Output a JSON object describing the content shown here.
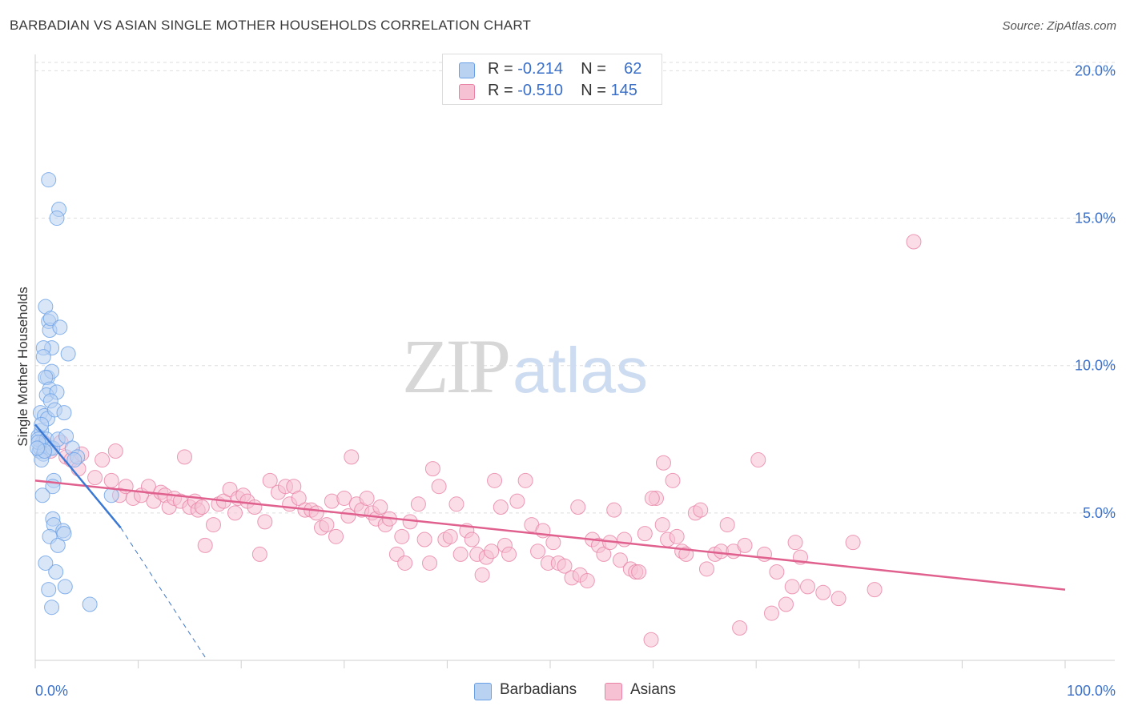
{
  "title": "BARBADIAN VS ASIAN SINGLE MOTHER HOUSEHOLDS CORRELATION CHART",
  "source": "Source: ZipAtlas.com",
  "watermark": {
    "zip": "ZIP",
    "atlas": "atlas"
  },
  "legend": {
    "rows": [
      {
        "r_label": "R =",
        "r_value": "-0.214",
        "n_label": "N =",
        "n_value": "62"
      },
      {
        "r_label": "R =",
        "r_value": "-0.510",
        "n_label": "N =",
        "n_value": "145"
      }
    ]
  },
  "chart_data": {
    "type": "scatter",
    "xlabel": "",
    "ylabel": "Single Mother Households",
    "xlim": [
      0,
      100
    ],
    "ylim": [
      0,
      20.5
    ],
    "x_tick_labels": [
      "0.0%",
      "100.0%"
    ],
    "y_ticks": [
      5,
      10,
      15,
      20
    ],
    "y_tick_labels": [
      "5.0%",
      "10.0%",
      "15.0%",
      "20.0%"
    ],
    "grid": "horizontal dashed",
    "legend_position": "top-center",
    "series": [
      {
        "name": "Barbadians",
        "color": "#6aa0e6",
        "fill": "#b9d2f2",
        "trend": {
          "x0": 0,
          "y0": 8.0,
          "x1": 8.3,
          "y1": 4.5,
          "dash_to_x": 16.7,
          "dash_to_y": 0.0
        },
        "points": [
          [
            0.3,
            7.6
          ],
          [
            0.5,
            8.4
          ],
          [
            0.6,
            7.8
          ],
          [
            0.7,
            7.4
          ],
          [
            0.4,
            7.1
          ],
          [
            0.8,
            7.3
          ],
          [
            0.9,
            8.3
          ],
          [
            1.2,
            8.2
          ],
          [
            0.5,
            7.2
          ],
          [
            0.3,
            7.5
          ],
          [
            1.0,
            7.3
          ],
          [
            0.6,
            8.0
          ],
          [
            1.5,
            7.2
          ],
          [
            1.1,
            7.5
          ],
          [
            0.8,
            7.0
          ],
          [
            1.7,
            7.2
          ],
          [
            2.2,
            7.5
          ],
          [
            1.3,
            16.3
          ],
          [
            2.3,
            15.3
          ],
          [
            2.1,
            15.0
          ],
          [
            1.0,
            12.0
          ],
          [
            1.3,
            11.5
          ],
          [
            1.4,
            11.2
          ],
          [
            1.5,
            11.6
          ],
          [
            2.4,
            11.3
          ],
          [
            1.6,
            10.6
          ],
          [
            0.8,
            10.6
          ],
          [
            0.8,
            10.3
          ],
          [
            3.2,
            10.4
          ],
          [
            1.2,
            9.6
          ],
          [
            1.6,
            9.8
          ],
          [
            1.0,
            9.6
          ],
          [
            1.4,
            9.2
          ],
          [
            1.1,
            9.0
          ],
          [
            2.1,
            9.1
          ],
          [
            1.5,
            8.8
          ],
          [
            1.9,
            8.5
          ],
          [
            2.8,
            8.4
          ],
          [
            3.0,
            7.6
          ],
          [
            3.6,
            7.2
          ],
          [
            4.1,
            6.9
          ],
          [
            3.8,
            6.8
          ],
          [
            0.6,
            6.8
          ],
          [
            1.8,
            6.1
          ],
          [
            1.7,
            5.9
          ],
          [
            0.7,
            5.6
          ],
          [
            7.4,
            5.6
          ],
          [
            1.7,
            4.8
          ],
          [
            1.8,
            4.6
          ],
          [
            2.7,
            4.4
          ],
          [
            2.8,
            4.3
          ],
          [
            1.4,
            4.2
          ],
          [
            2.2,
            3.9
          ],
          [
            2.0,
            3.0
          ],
          [
            1.0,
            3.3
          ],
          [
            1.3,
            2.4
          ],
          [
            2.9,
            2.5
          ],
          [
            1.6,
            1.8
          ],
          [
            5.3,
            1.9
          ],
          [
            0.3,
            7.4
          ],
          [
            0.9,
            7.1
          ],
          [
            0.2,
            7.2
          ]
        ]
      },
      {
        "name": "Asians",
        "color": "#e882a6",
        "fill": "#f5c1d3",
        "trend": {
          "x0": 0,
          "y0": 6.1,
          "x1": 100,
          "y1": 2.4
        },
        "points": [
          [
            0.8,
            7.4
          ],
          [
            1.5,
            7.1
          ],
          [
            2.5,
            7.4
          ],
          [
            3.0,
            6.9
          ],
          [
            3.5,
            6.8
          ],
          [
            4.2,
            6.5
          ],
          [
            4.5,
            7.0
          ],
          [
            5.8,
            6.2
          ],
          [
            6.5,
            6.8
          ],
          [
            7.4,
            6.1
          ],
          [
            7.8,
            7.1
          ],
          [
            8.2,
            5.6
          ],
          [
            8.8,
            5.9
          ],
          [
            9.5,
            5.5
          ],
          [
            10.3,
            5.6
          ],
          [
            11.0,
            5.9
          ],
          [
            11.5,
            5.4
          ],
          [
            12.2,
            5.7
          ],
          [
            12.6,
            5.6
          ],
          [
            13.0,
            5.2
          ],
          [
            13.5,
            5.5
          ],
          [
            14.1,
            5.4
          ],
          [
            14.5,
            6.9
          ],
          [
            15.0,
            5.2
          ],
          [
            15.5,
            5.4
          ],
          [
            15.8,
            5.1
          ],
          [
            16.2,
            5.2
          ],
          [
            16.5,
            3.9
          ],
          [
            17.3,
            4.6
          ],
          [
            17.8,
            5.3
          ],
          [
            18.3,
            5.4
          ],
          [
            18.9,
            5.8
          ],
          [
            19.4,
            5.0
          ],
          [
            19.7,
            5.5
          ],
          [
            20.2,
            5.6
          ],
          [
            20.6,
            5.4
          ],
          [
            21.3,
            5.2
          ],
          [
            21.8,
            3.6
          ],
          [
            22.3,
            4.7
          ],
          [
            22.8,
            6.1
          ],
          [
            23.6,
            5.7
          ],
          [
            24.3,
            5.9
          ],
          [
            24.7,
            5.3
          ],
          [
            25.1,
            5.9
          ],
          [
            25.6,
            5.5
          ],
          [
            26.2,
            5.1
          ],
          [
            26.8,
            5.1
          ],
          [
            27.3,
            5.0
          ],
          [
            27.8,
            4.5
          ],
          [
            28.3,
            4.6
          ],
          [
            28.8,
            5.4
          ],
          [
            29.2,
            4.2
          ],
          [
            30.0,
            5.5
          ],
          [
            30.4,
            4.9
          ],
          [
            30.7,
            6.9
          ],
          [
            31.2,
            5.3
          ],
          [
            31.7,
            5.1
          ],
          [
            32.2,
            5.5
          ],
          [
            32.7,
            5.0
          ],
          [
            33.1,
            4.8
          ],
          [
            33.5,
            5.2
          ],
          [
            34.0,
            4.6
          ],
          [
            34.4,
            4.8
          ],
          [
            35.1,
            3.6
          ],
          [
            35.6,
            4.2
          ],
          [
            35.9,
            3.3
          ],
          [
            36.4,
            4.7
          ],
          [
            37.2,
            5.3
          ],
          [
            37.8,
            4.1
          ],
          [
            38.3,
            3.3
          ],
          [
            38.6,
            6.5
          ],
          [
            39.2,
            5.9
          ],
          [
            39.8,
            4.1
          ],
          [
            40.3,
            4.2
          ],
          [
            40.9,
            5.3
          ],
          [
            41.3,
            3.6
          ],
          [
            41.9,
            4.4
          ],
          [
            42.4,
            4.1
          ],
          [
            42.9,
            3.6
          ],
          [
            43.4,
            2.9
          ],
          [
            43.8,
            3.5
          ],
          [
            44.3,
            3.7
          ],
          [
            44.6,
            6.1
          ],
          [
            45.2,
            5.2
          ],
          [
            45.6,
            3.9
          ],
          [
            46.0,
            3.6
          ],
          [
            46.8,
            5.4
          ],
          [
            47.6,
            6.1
          ],
          [
            48.2,
            4.6
          ],
          [
            48.8,
            3.7
          ],
          [
            49.3,
            4.4
          ],
          [
            49.8,
            3.3
          ],
          [
            50.3,
            4.0
          ],
          [
            50.8,
            3.3
          ],
          [
            51.4,
            3.2
          ],
          [
            52.1,
            2.8
          ],
          [
            52.7,
            5.2
          ],
          [
            52.9,
            2.9
          ],
          [
            53.6,
            2.7
          ],
          [
            54.1,
            4.1
          ],
          [
            54.7,
            3.9
          ],
          [
            55.2,
            3.6
          ],
          [
            55.8,
            4.0
          ],
          [
            56.2,
            5.1
          ],
          [
            56.8,
            3.4
          ],
          [
            57.2,
            4.1
          ],
          [
            57.8,
            3.1
          ],
          [
            58.3,
            3.0
          ],
          [
            58.6,
            3.0
          ],
          [
            59.2,
            4.3
          ],
          [
            59.8,
            0.7
          ],
          [
            60.3,
            5.5
          ],
          [
            60.9,
            4.6
          ],
          [
            61.4,
            4.1
          ],
          [
            61.9,
            6.1
          ],
          [
            62.3,
            4.2
          ],
          [
            62.8,
            3.7
          ],
          [
            63.2,
            3.6
          ],
          [
            64.1,
            5.0
          ],
          [
            64.6,
            5.1
          ],
          [
            65.2,
            3.1
          ],
          [
            66.0,
            3.6
          ],
          [
            66.6,
            3.7
          ],
          [
            67.2,
            4.6
          ],
          [
            67.8,
            3.7
          ],
          [
            68.4,
            1.1
          ],
          [
            68.9,
            3.9
          ],
          [
            70.2,
            6.8
          ],
          [
            70.8,
            3.6
          ],
          [
            71.5,
            1.6
          ],
          [
            72.0,
            3.0
          ],
          [
            72.9,
            1.9
          ],
          [
            73.5,
            2.5
          ],
          [
            73.8,
            4.0
          ],
          [
            74.3,
            3.5
          ],
          [
            75.0,
            2.5
          ],
          [
            76.5,
            2.3
          ],
          [
            78.0,
            2.1
          ],
          [
            79.4,
            4.0
          ],
          [
            81.5,
            2.4
          ],
          [
            85.3,
            14.2
          ],
          [
            61.0,
            6.7
          ],
          [
            59.9,
            5.5
          ]
        ]
      }
    ]
  }
}
